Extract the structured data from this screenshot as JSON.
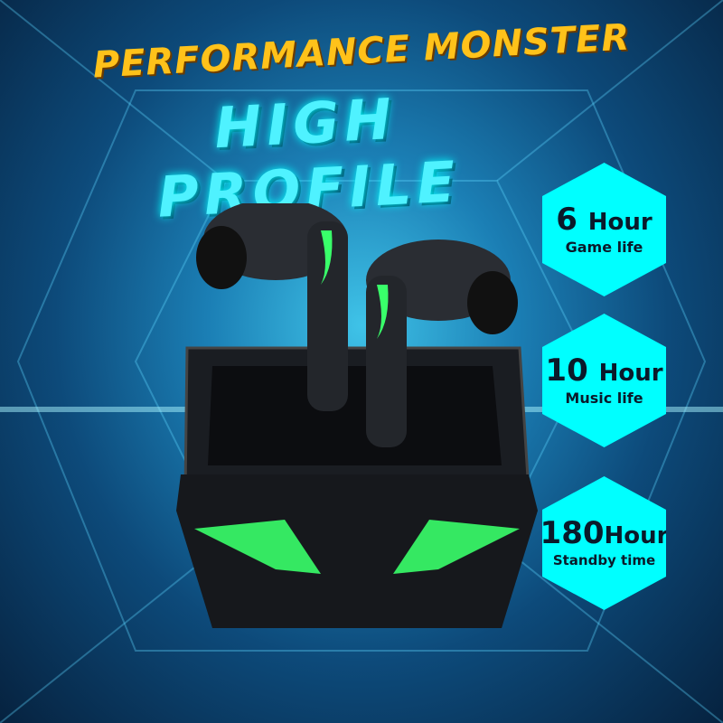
{
  "headline": "PERFORMANCE MONSTER",
  "subheadline": "HIGH PROFILE",
  "features": [
    {
      "number": "6",
      "unit": "Hour",
      "label": "Game life"
    },
    {
      "number": "10",
      "unit": "Hour",
      "label": "Music life"
    },
    {
      "number": "180",
      "unit": "Hour",
      "label": "Standby time"
    }
  ],
  "colors": {
    "headline": "#ffc21a",
    "subheadline": "#4ff2ff",
    "hexagon": "#00ffff",
    "led": "#39ff6a"
  }
}
